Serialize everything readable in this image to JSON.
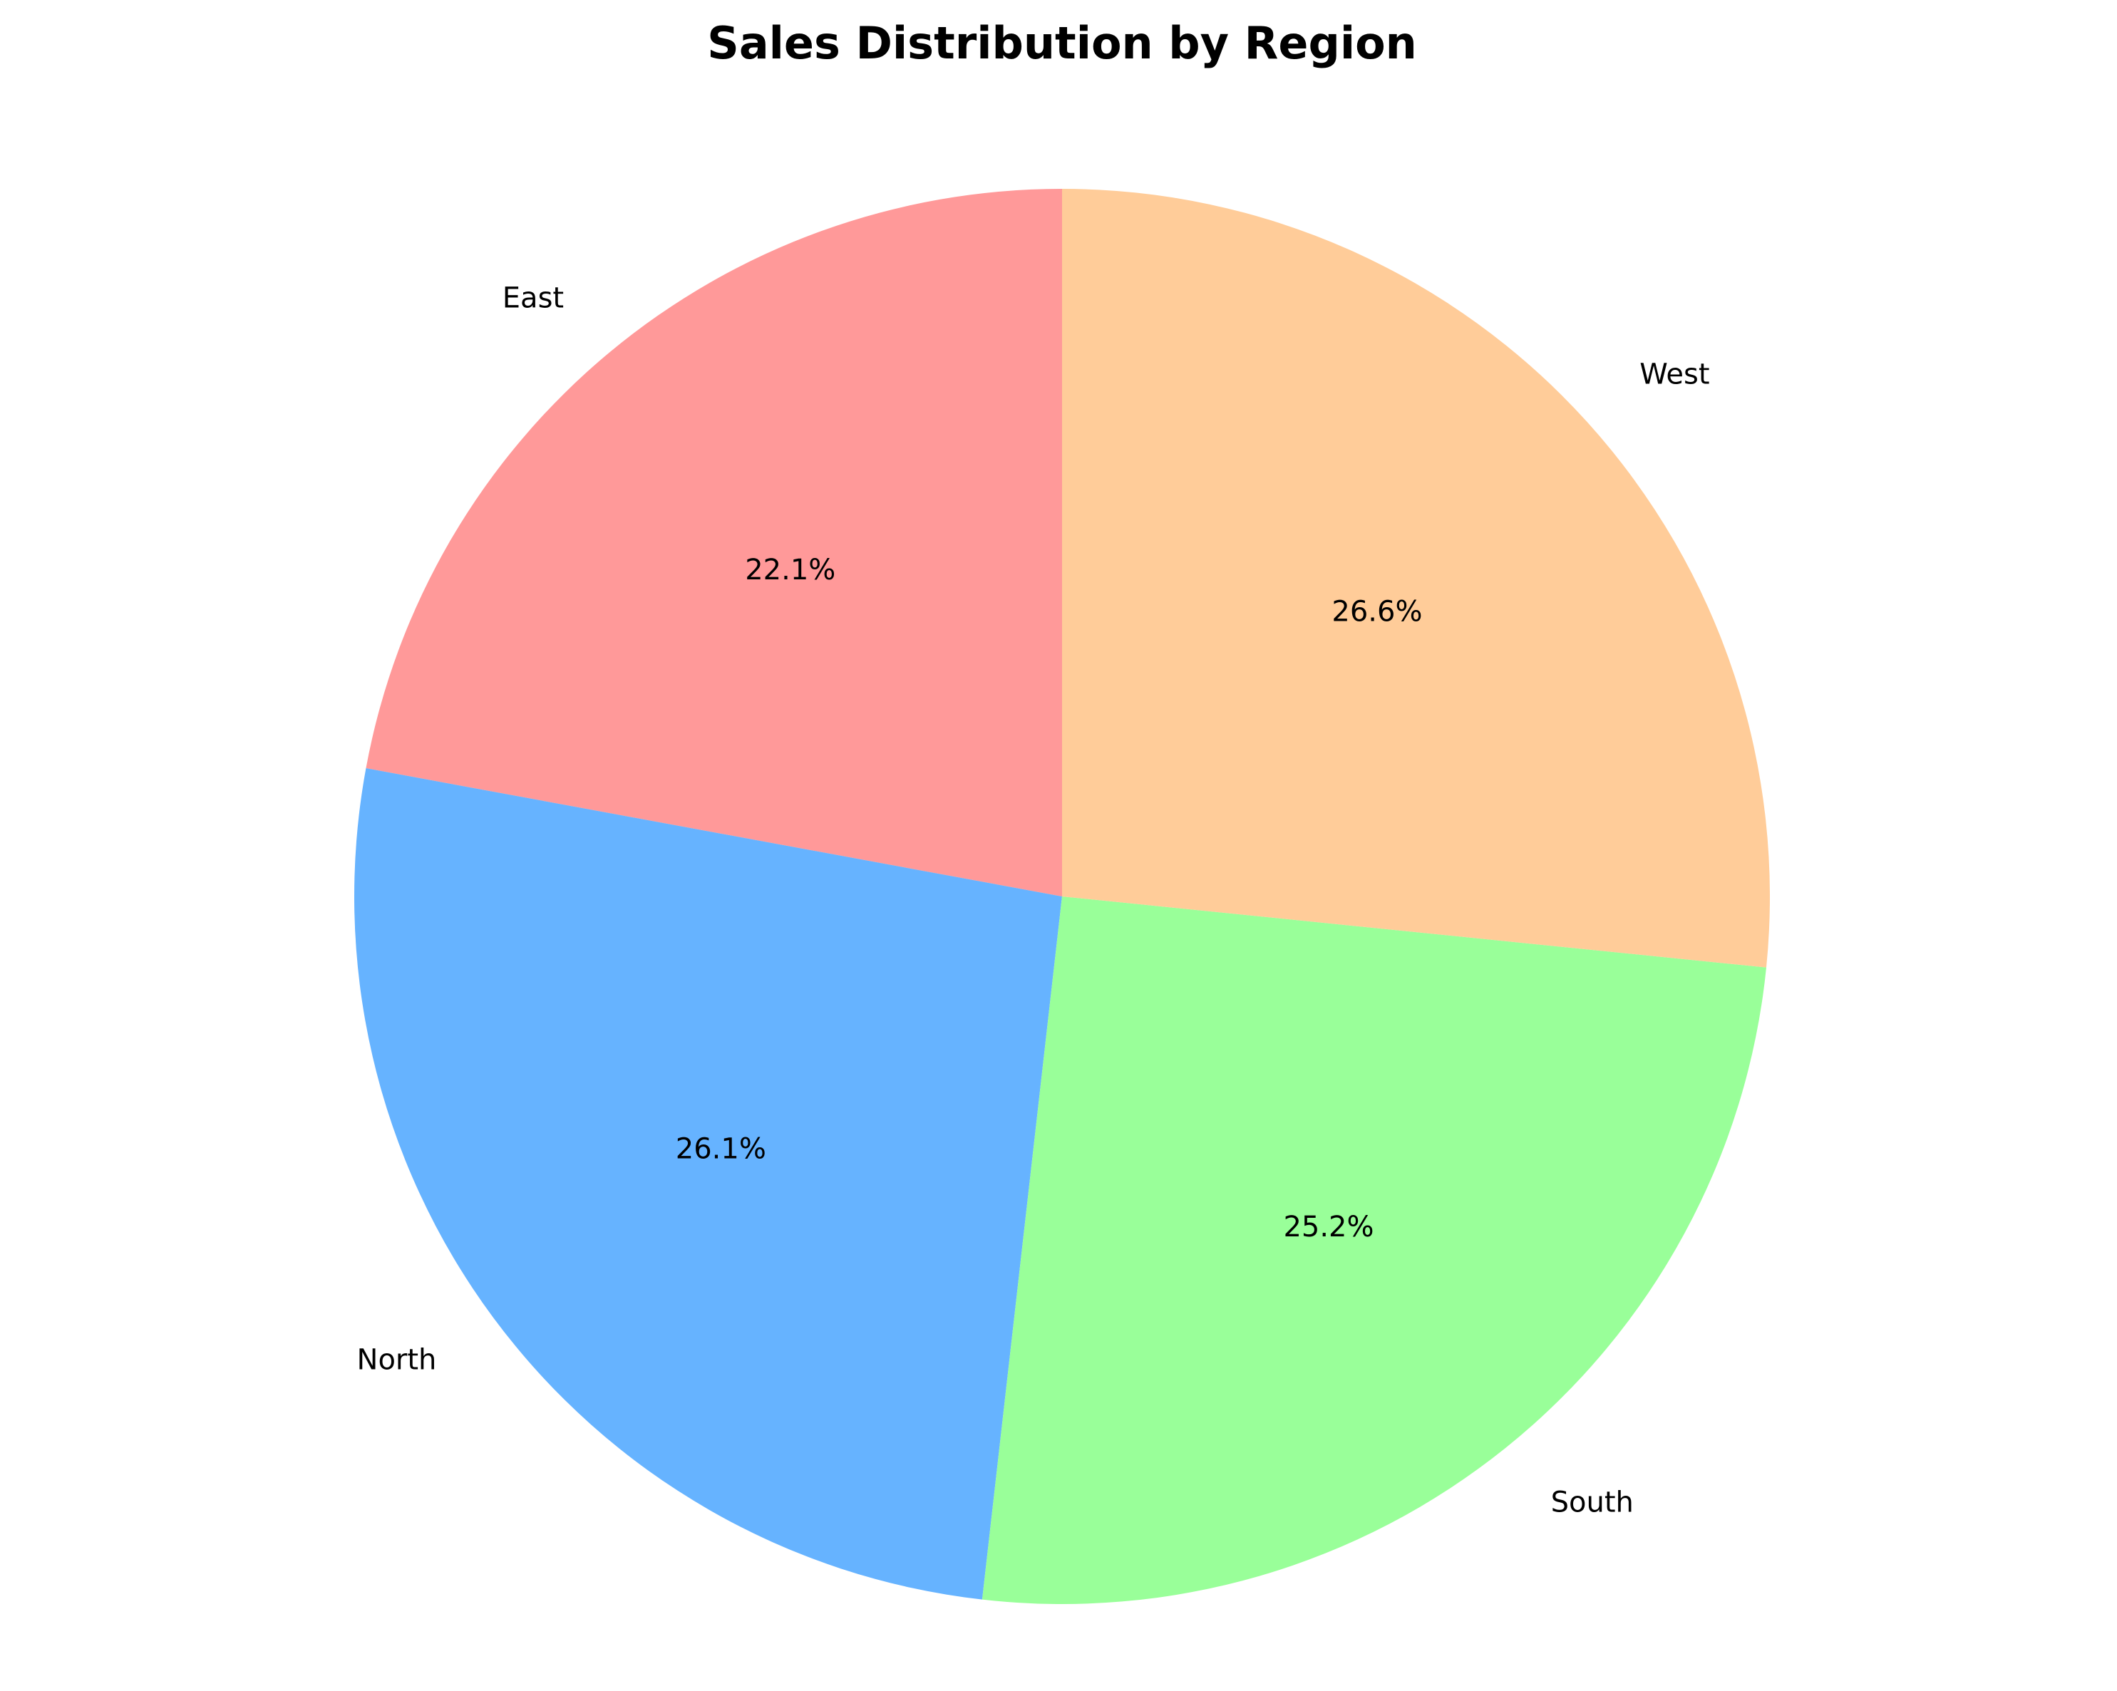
{
  "chart_data": {
    "type": "pie",
    "title": "Sales Distribution by Region",
    "categories": [
      "East",
      "North",
      "South",
      "West"
    ],
    "values": [
      22.1,
      26.1,
      25.2,
      26.6
    ],
    "value_labels": [
      "22.1%",
      "26.1%",
      "25.2%",
      "26.6%"
    ],
    "colors": [
      "#FF9999",
      "#66B3FF",
      "#99FF99",
      "#FFCC99"
    ],
    "start_angle": 90,
    "direction": "counterclockwise",
    "legend": false
  }
}
